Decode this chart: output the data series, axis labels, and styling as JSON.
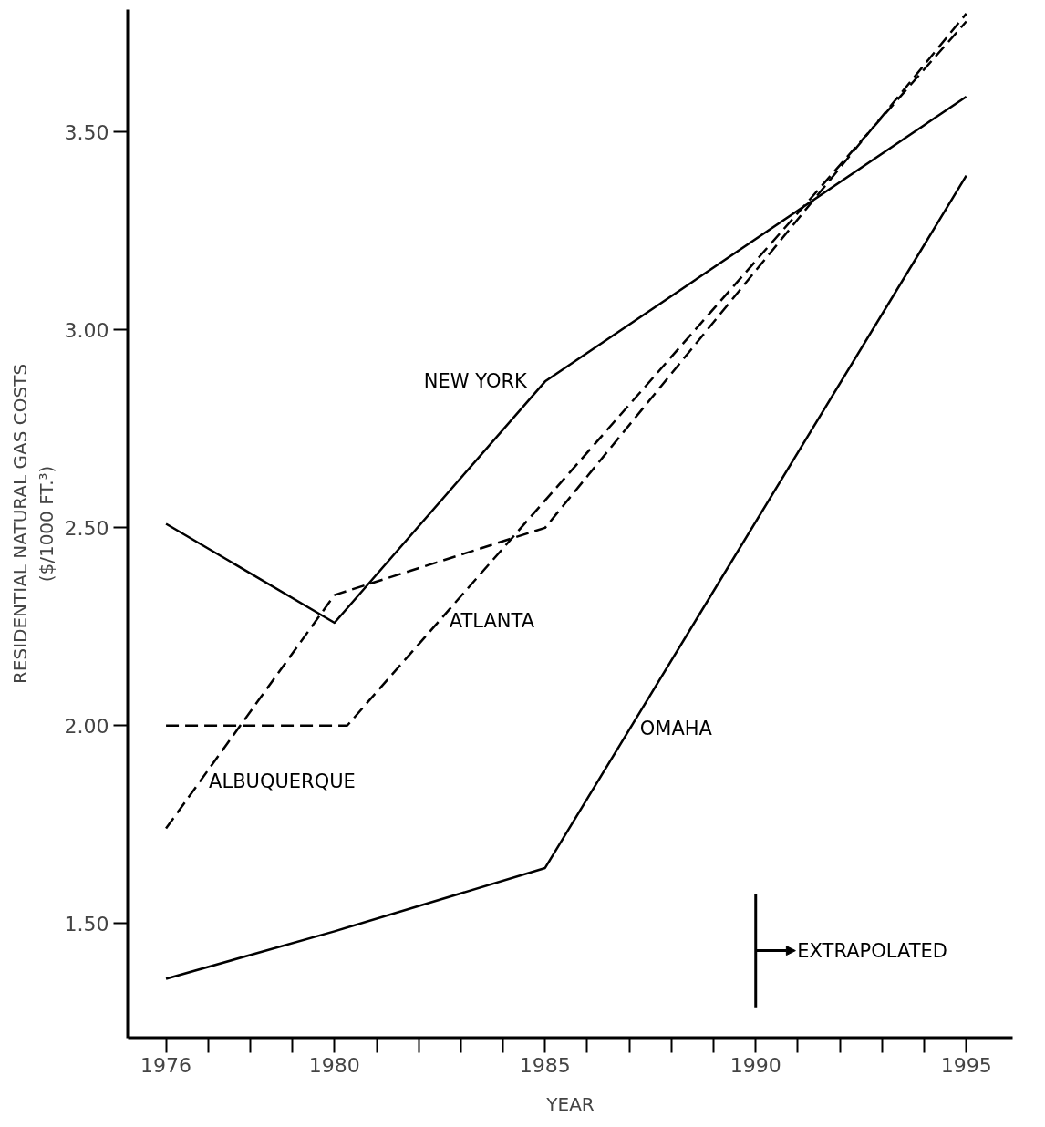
{
  "chart_data": {
    "type": "line",
    "xlabel": "YEAR",
    "ylabel": "RESIDENTIAL NATURAL GAS COSTS\n($/1000 FT.³)",
    "xlim": [
      1975.1,
      1996.1
    ],
    "ylim": [
      1.21,
      3.81
    ],
    "xticks": [
      {
        "value": 1976,
        "label": "1976"
      },
      {
        "value": 1977,
        "label": null
      },
      {
        "value": 1978,
        "label": null
      },
      {
        "value": 1979,
        "label": null
      },
      {
        "value": 1980,
        "label": "1980"
      },
      {
        "value": 1981,
        "label": null
      },
      {
        "value": 1982,
        "label": null
      },
      {
        "value": 1983,
        "label": null
      },
      {
        "value": 1984,
        "label": null
      },
      {
        "value": 1985,
        "label": "1985"
      },
      {
        "value": 1986,
        "label": null
      },
      {
        "value": 1987,
        "label": null
      },
      {
        "value": 1988,
        "label": null
      },
      {
        "value": 1989,
        "label": null
      },
      {
        "value": 1990,
        "label": "1990"
      },
      {
        "value": 1991,
        "label": null
      },
      {
        "value": 1992,
        "label": null
      },
      {
        "value": 1993,
        "label": null
      },
      {
        "value": 1994,
        "label": null
      },
      {
        "value": 1995,
        "label": "1995"
      }
    ],
    "yticks": [
      {
        "value": 1.5,
        "label": "1.50"
      },
      {
        "value": 2.0,
        "label": "2.00"
      },
      {
        "value": 2.5,
        "label": "2.50"
      },
      {
        "value": 3.0,
        "label": "3.00"
      },
      {
        "value": 3.5,
        "label": "3.50"
      }
    ],
    "grid": false,
    "marker": "none",
    "series": [
      {
        "name": "NEW YORK",
        "color": "#000000",
        "line_style": "solid",
        "x": [
          1976,
          1980,
          1985,
          1995
        ],
        "values": [
          2.51,
          2.26,
          2.87,
          3.59
        ]
      },
      {
        "name": "ATLANTA",
        "color": "#000000",
        "line_style": "dashed",
        "x": [
          1976,
          1980.3,
          1995
        ],
        "values": [
          2.0,
          2.0,
          3.78
        ]
      },
      {
        "name": "ALBUQUERQUE",
        "color": "#000000",
        "line_style": "dashed",
        "x": [
          1976,
          1980,
          1985,
          1995
        ],
        "values": [
          1.74,
          2.33,
          2.5,
          3.8
        ]
      },
      {
        "name": "OMAHA",
        "color": "#000000",
        "line_style": "solid",
        "x": [
          1976,
          1980,
          1985,
          1995
        ],
        "values": [
          1.36,
          1.48,
          1.64,
          3.39
        ]
      }
    ],
    "ref_lines": [
      {
        "axis": "x",
        "value": 1990,
        "label": "EXTRAPOLATED"
      }
    ]
  }
}
